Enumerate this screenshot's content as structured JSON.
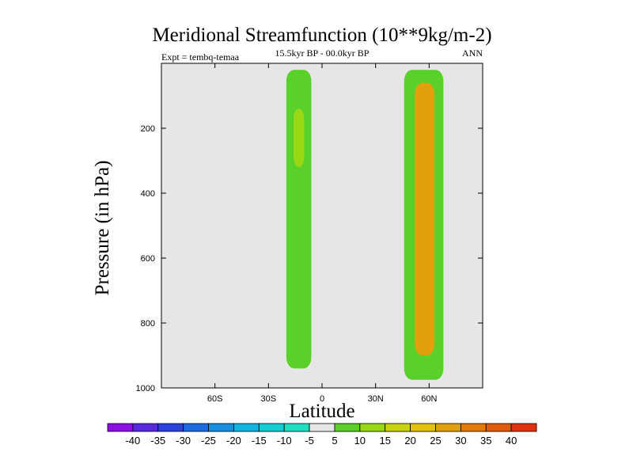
{
  "chart_data": {
    "type": "contour",
    "title": "Meridional Streamfunction (10**9kg/m-2)",
    "subtitle": "15.5kyr BP - 00.0kyr BP",
    "left_label": "Expt = tembq-temaa",
    "right_label": "ANN",
    "xlabel": "Latitude",
    "ylabel": "Pressure (in hPa)",
    "xlim": [
      -90,
      90
    ],
    "ylim": [
      1000,
      0
    ],
    "x_ticks": [
      {
        "value": -60,
        "label": "60S"
      },
      {
        "value": -30,
        "label": "30S"
      },
      {
        "value": 0,
        "label": "0"
      },
      {
        "value": 30,
        "label": "30N"
      },
      {
        "value": 60,
        "label": "60N"
      }
    ],
    "y_ticks": [
      {
        "value": 200,
        "label": "200"
      },
      {
        "value": 400,
        "label": "400"
      },
      {
        "value": 600,
        "label": "600"
      },
      {
        "value": 800,
        "label": "800"
      },
      {
        "value": 1000,
        "label": "1000"
      }
    ],
    "background_color": "#e6e6e6",
    "colorbar": {
      "levels": [
        -40,
        -35,
        -30,
        -25,
        -20,
        -15,
        -10,
        -5,
        5,
        10,
        15,
        20,
        25,
        30,
        35,
        40
      ],
      "labels": [
        "-40",
        "-35",
        "-30",
        "-25",
        "-20",
        "-15",
        "-10",
        "-5",
        "5",
        "10",
        "15",
        "20",
        "25",
        "30",
        "35",
        "40"
      ],
      "colors": [
        "#8c10e6",
        "#5a28e0",
        "#2a40e0",
        "#1a6ae0",
        "#1890e0",
        "#12b4e2",
        "#12cfd4",
        "#1ee0c0",
        "#e6e6e6",
        "#5ad02a",
        "#9ad816",
        "#c8d20e",
        "#e2c20c",
        "#e2a00c",
        "#e27a0c",
        "#e25a0c",
        "#e0320c"
      ]
    },
    "regions": [
      {
        "name": "sh-polar-cell-a",
        "value": -5,
        "lat": [
          -87,
          -82
        ],
        "p": [
          20,
          880
        ]
      },
      {
        "name": "sh-polar-cell-b",
        "value": -5,
        "lat": [
          -79,
          -67
        ],
        "p": [
          20,
          950
        ]
      },
      {
        "name": "sh-westerly-cell",
        "value": 5,
        "lat": [
          -20,
          -6
        ],
        "p": [
          20,
          940
        ]
      },
      {
        "name": "sh-westerly-core",
        "value": 10,
        "lat": [
          -16,
          -10
        ],
        "p": [
          140,
          320
        ]
      },
      {
        "name": "equatorial-cell",
        "value": -5,
        "lat": [
          -5,
          6
        ],
        "p": [
          20,
          360
        ]
      },
      {
        "name": "nh-tropical-cell",
        "value": -5,
        "lat": [
          24,
          30
        ],
        "p": [
          200,
          830
        ]
      },
      {
        "name": "nh-ferrel-cell",
        "value": 5,
        "lat": [
          46,
          68
        ],
        "p": [
          20,
          975
        ]
      },
      {
        "name": "nh-ferrel-core",
        "value": 25,
        "lat": [
          52,
          63
        ],
        "p": [
          60,
          900
        ]
      },
      {
        "name": "nh-polar-cell",
        "value": -5,
        "lat": [
          70,
          73
        ],
        "p": [
          20,
          780
        ]
      }
    ]
  }
}
